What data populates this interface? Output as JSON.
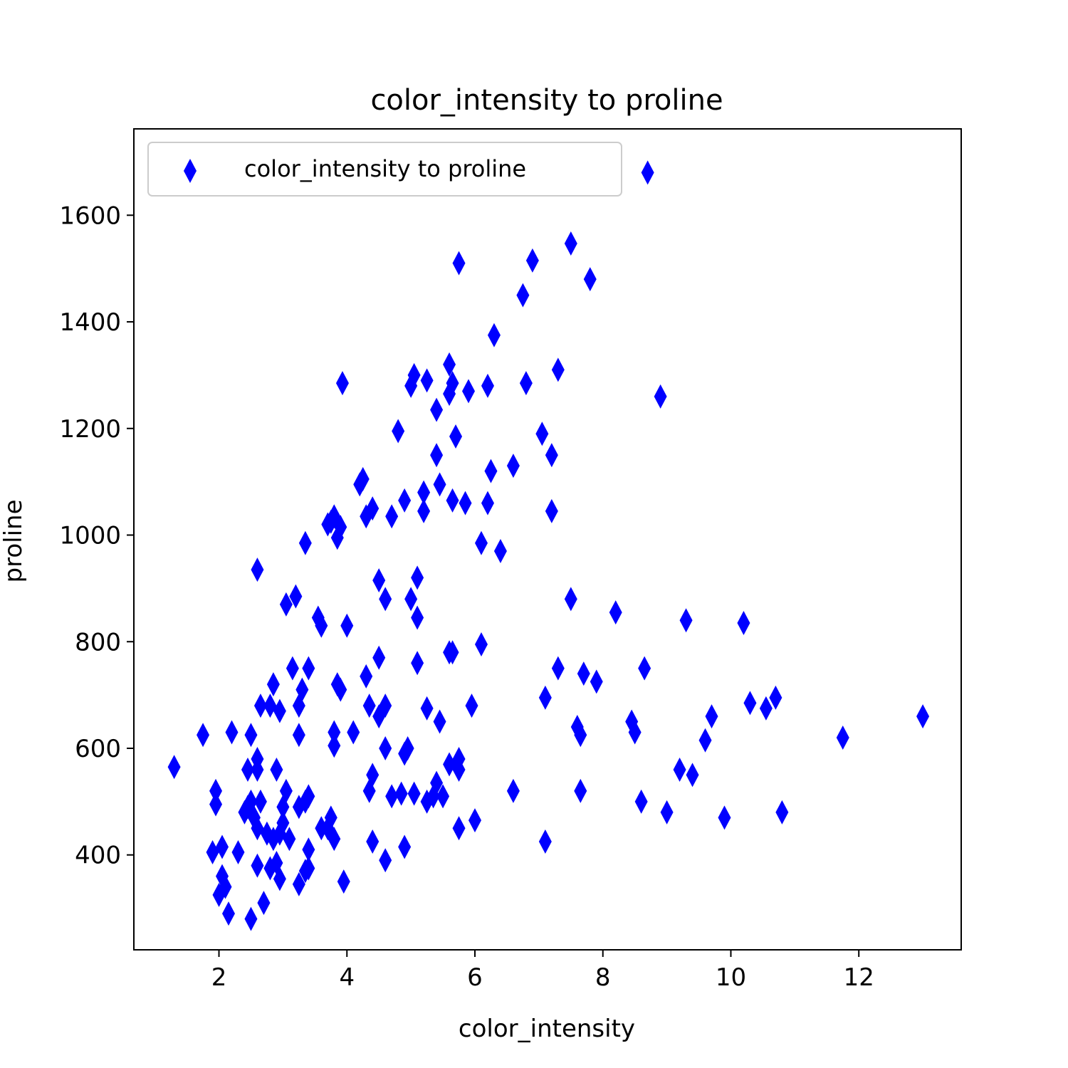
{
  "chart_data": {
    "type": "scatter",
    "title": "color_intensity to proline",
    "xlabel": "color_intensity",
    "ylabel": "proline",
    "xlim": [
      0.67,
      13.6
    ],
    "ylim": [
      222,
      1762
    ],
    "xticks": [
      2,
      4,
      6,
      8,
      10,
      12
    ],
    "yticks": [
      400,
      600,
      800,
      1000,
      1200,
      1400,
      1600
    ],
    "grid": false,
    "legend_position": "top-left",
    "marker": "thin_diamond",
    "color": "#0000ff",
    "series": [
      {
        "name": "color_intensity to proline",
        "points": [
          [
            8.7,
            1680
          ],
          [
            7.5,
            1547
          ],
          [
            5.75,
            1510
          ],
          [
            6.9,
            1515
          ],
          [
            7.8,
            1480
          ],
          [
            6.75,
            1450
          ],
          [
            6.3,
            1375
          ],
          [
            5.6,
            1320
          ],
          [
            5.05,
            1300
          ],
          [
            5.25,
            1290
          ],
          [
            5.65,
            1285
          ],
          [
            5.6,
            1265
          ],
          [
            5.0,
            1280
          ],
          [
            5.9,
            1270
          ],
          [
            6.2,
            1280
          ],
          [
            6.8,
            1285
          ],
          [
            7.3,
            1310
          ],
          [
            3.93,
            1285
          ],
          [
            8.9,
            1260
          ],
          [
            5.4,
            1235
          ],
          [
            4.8,
            1195
          ],
          [
            5.7,
            1185
          ],
          [
            7.05,
            1190
          ],
          [
            5.4,
            1150
          ],
          [
            7.2,
            1150
          ],
          [
            6.6,
            1130
          ],
          [
            6.25,
            1120
          ],
          [
            4.25,
            1105
          ],
          [
            4.2,
            1095
          ],
          [
            5.45,
            1095
          ],
          [
            5.2,
            1080
          ],
          [
            4.9,
            1065
          ],
          [
            5.65,
            1065
          ],
          [
            5.85,
            1060
          ],
          [
            6.2,
            1060
          ],
          [
            4.4,
            1050
          ],
          [
            4.3,
            1035
          ],
          [
            5.2,
            1045
          ],
          [
            7.2,
            1045
          ],
          [
            4.7,
            1035
          ],
          [
            3.8,
            1035
          ],
          [
            3.7,
            1020
          ],
          [
            3.9,
            1015
          ],
          [
            3.75,
            1025
          ],
          [
            3.85,
            995
          ],
          [
            3.35,
            985
          ],
          [
            6.1,
            985
          ],
          [
            6.4,
            970
          ],
          [
            2.6,
            935
          ],
          [
            4.5,
            915
          ],
          [
            5.1,
            920
          ],
          [
            4.6,
            880
          ],
          [
            5.0,
            880
          ],
          [
            3.2,
            885
          ],
          [
            3.05,
            870
          ],
          [
            7.5,
            880
          ],
          [
            8.2,
            855
          ],
          [
            5.1,
            845
          ],
          [
            3.55,
            845
          ],
          [
            3.6,
            830
          ],
          [
            4.0,
            830
          ],
          [
            9.3,
            840
          ],
          [
            10.2,
            835
          ],
          [
            6.1,
            795
          ],
          [
            5.6,
            780
          ],
          [
            5.65,
            780
          ],
          [
            4.5,
            770
          ],
          [
            5.1,
            760
          ],
          [
            3.15,
            750
          ],
          [
            3.4,
            750
          ],
          [
            7.3,
            750
          ],
          [
            8.65,
            750
          ],
          [
            4.3,
            735
          ],
          [
            7.7,
            740
          ],
          [
            7.9,
            725
          ],
          [
            2.85,
            720
          ],
          [
            3.85,
            720
          ],
          [
            3.9,
            710
          ],
          [
            3.3,
            710
          ],
          [
            2.65,
            680
          ],
          [
            2.8,
            680
          ],
          [
            2.95,
            670
          ],
          [
            3.25,
            680
          ],
          [
            4.35,
            680
          ],
          [
            4.6,
            680
          ],
          [
            5.25,
            675
          ],
          [
            5.95,
            680
          ],
          [
            7.1,
            695
          ],
          [
            4.5,
            660
          ],
          [
            5.45,
            650
          ],
          [
            10.3,
            685
          ],
          [
            10.55,
            675
          ],
          [
            10.7,
            695
          ],
          [
            13.0,
            660
          ],
          [
            9.7,
            660
          ],
          [
            8.45,
            650
          ],
          [
            8.5,
            630
          ],
          [
            7.6,
            640
          ],
          [
            7.65,
            625
          ],
          [
            1.75,
            625
          ],
          [
            2.2,
            630
          ],
          [
            2.5,
            625
          ],
          [
            3.25,
            625
          ],
          [
            3.8,
            630
          ],
          [
            4.1,
            630
          ],
          [
            3.8,
            605
          ],
          [
            9.6,
            615
          ],
          [
            11.75,
            620
          ],
          [
            4.6,
            600
          ],
          [
            4.95,
            600
          ],
          [
            4.9,
            590
          ],
          [
            1.3,
            565
          ],
          [
            2.45,
            560
          ],
          [
            2.6,
            580
          ],
          [
            2.6,
            560
          ],
          [
            2.9,
            560
          ],
          [
            5.6,
            570
          ],
          [
            5.75,
            580
          ],
          [
            5.75,
            560
          ],
          [
            9.2,
            560
          ],
          [
            9.4,
            550
          ],
          [
            4.4,
            550
          ],
          [
            1.95,
            520
          ],
          [
            1.95,
            495
          ],
          [
            2.45,
            490
          ],
          [
            2.5,
            500
          ],
          [
            2.65,
            500
          ],
          [
            2.4,
            480
          ],
          [
            2.55,
            470
          ],
          [
            2.6,
            450
          ],
          [
            3.05,
            520
          ],
          [
            3.0,
            490
          ],
          [
            3.0,
            460
          ],
          [
            2.95,
            440
          ],
          [
            3.1,
            430
          ],
          [
            2.75,
            440
          ],
          [
            2.85,
            430
          ],
          [
            3.25,
            490
          ],
          [
            3.35,
            500
          ],
          [
            3.4,
            510
          ],
          [
            3.75,
            470
          ],
          [
            3.6,
            450
          ],
          [
            3.7,
            450
          ],
          [
            3.8,
            430
          ],
          [
            4.35,
            520
          ],
          [
            4.7,
            510
          ],
          [
            4.85,
            515
          ],
          [
            5.05,
            515
          ],
          [
            5.25,
            500
          ],
          [
            5.35,
            510
          ],
          [
            5.4,
            535
          ],
          [
            5.5,
            510
          ],
          [
            6.6,
            520
          ],
          [
            7.65,
            520
          ],
          [
            8.6,
            500
          ],
          [
            9.0,
            480
          ],
          [
            9.9,
            470
          ],
          [
            10.8,
            480
          ],
          [
            5.75,
            450
          ],
          [
            6.0,
            465
          ],
          [
            4.4,
            425
          ],
          [
            4.9,
            415
          ],
          [
            4.6,
            390
          ],
          [
            7.1,
            425
          ],
          [
            1.9,
            405
          ],
          [
            2.05,
            415
          ],
          [
            2.3,
            405
          ],
          [
            3.4,
            410
          ],
          [
            2.6,
            380
          ],
          [
            2.8,
            375
          ],
          [
            2.9,
            385
          ],
          [
            2.95,
            355
          ],
          [
            3.25,
            345
          ],
          [
            3.4,
            375
          ],
          [
            3.35,
            370
          ],
          [
            3.95,
            350
          ],
          [
            2.05,
            360
          ],
          [
            2.0,
            325
          ],
          [
            2.1,
            340
          ],
          [
            2.7,
            310
          ],
          [
            2.15,
            290
          ],
          [
            2.5,
            280
          ]
        ]
      }
    ]
  }
}
